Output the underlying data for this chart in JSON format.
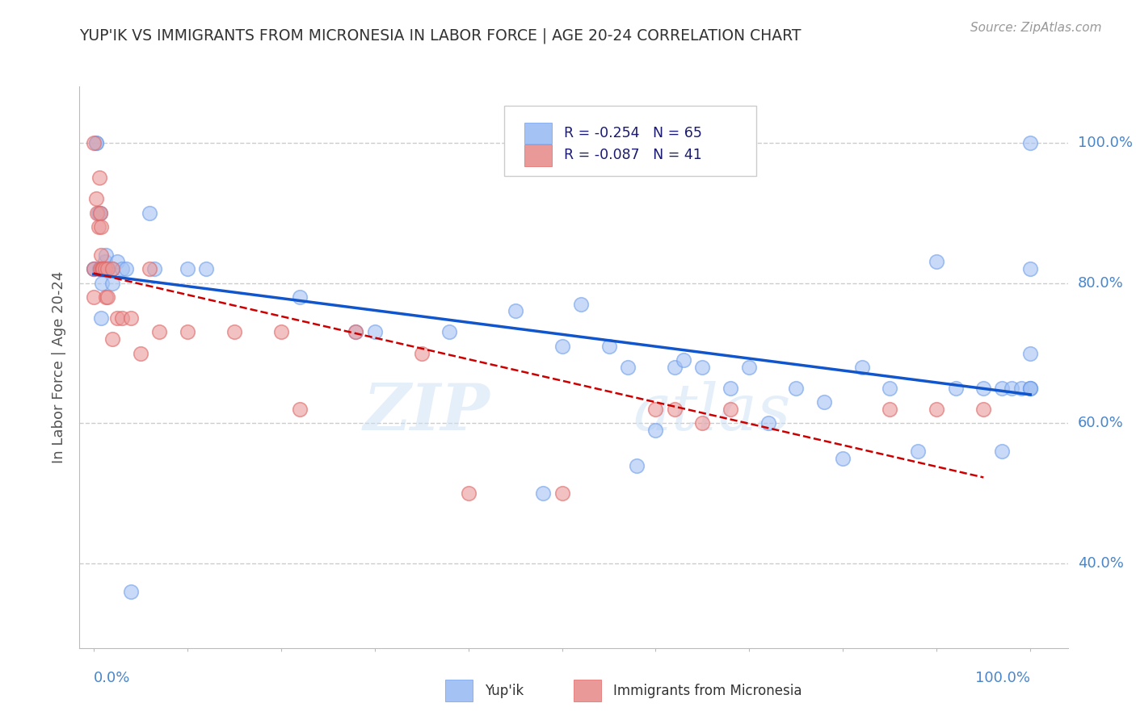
{
  "title": "YUP'IK VS IMMIGRANTS FROM MICRONESIA IN LABOR FORCE | AGE 20-24 CORRELATION CHART",
  "source": "Source: ZipAtlas.com",
  "ylabel": "In Labor Force | Age 20-24",
  "legend_blue_r": "R = -0.254",
  "legend_blue_n": "N = 65",
  "legend_pink_r": "R = -0.087",
  "legend_pink_n": "N = 41",
  "legend_label_blue": "Yup'ik",
  "legend_label_pink": "Immigrants from Micronesia",
  "blue_color": "#a4c2f4",
  "pink_color": "#ea9999",
  "blue_edge_color": "#6d9eeb",
  "pink_edge_color": "#e06666",
  "blue_line_color": "#1155cc",
  "pink_line_color": "#cc0000",
  "watermark_zip": "ZIP",
  "watermark_atlas": "atlas",
  "blue_x": [
    0.0,
    0.0,
    0.003,
    0.003,
    0.005,
    0.006,
    0.007,
    0.007,
    0.008,
    0.008,
    0.009,
    0.01,
    0.01,
    0.01,
    0.012,
    0.013,
    0.013,
    0.015,
    0.02,
    0.02,
    0.025,
    0.03,
    0.035,
    0.04,
    0.06,
    0.065,
    0.1,
    0.12,
    0.22,
    0.28,
    0.3,
    0.38,
    0.45,
    0.48,
    0.5,
    0.52,
    0.55,
    0.57,
    0.58,
    0.6,
    0.62,
    0.63,
    0.65,
    0.68,
    0.7,
    0.72,
    0.75,
    0.78,
    0.8,
    0.82,
    0.85,
    0.88,
    0.9,
    0.92,
    0.95,
    0.97,
    0.97,
    0.98,
    0.99,
    1.0,
    1.0,
    1.0,
    1.0,
    1.0,
    1.0
  ],
  "blue_y": [
    0.82,
    0.82,
    1.0,
    1.0,
    0.9,
    0.82,
    0.9,
    0.82,
    0.82,
    0.75,
    0.8,
    0.82,
    0.82,
    0.82,
    0.83,
    0.84,
    0.82,
    0.82,
    0.82,
    0.8,
    0.83,
    0.82,
    0.82,
    0.36,
    0.9,
    0.82,
    0.82,
    0.82,
    0.78,
    0.73,
    0.73,
    0.73,
    0.76,
    0.5,
    0.71,
    0.77,
    0.71,
    0.68,
    0.54,
    0.59,
    0.68,
    0.69,
    0.68,
    0.65,
    0.68,
    0.6,
    0.65,
    0.63,
    0.55,
    0.68,
    0.65,
    0.56,
    0.83,
    0.65,
    0.65,
    0.56,
    0.65,
    0.65,
    0.65,
    0.7,
    0.65,
    0.65,
    0.65,
    0.82,
    1.0
  ],
  "pink_x": [
    0.0,
    0.0,
    0.0,
    0.003,
    0.004,
    0.005,
    0.006,
    0.007,
    0.007,
    0.008,
    0.008,
    0.009,
    0.01,
    0.01,
    0.012,
    0.013,
    0.015,
    0.015,
    0.02,
    0.02,
    0.025,
    0.03,
    0.04,
    0.05,
    0.06,
    0.07,
    0.1,
    0.15,
    0.2,
    0.22,
    0.28,
    0.35,
    0.4,
    0.5,
    0.6,
    0.62,
    0.65,
    0.68,
    0.85,
    0.9,
    0.95
  ],
  "pink_y": [
    0.82,
    0.78,
    1.0,
    0.92,
    0.9,
    0.88,
    0.95,
    0.9,
    0.82,
    0.88,
    0.84,
    0.82,
    0.82,
    0.82,
    0.82,
    0.78,
    0.82,
    0.78,
    0.82,
    0.72,
    0.75,
    0.75,
    0.75,
    0.7,
    0.82,
    0.73,
    0.73,
    0.73,
    0.73,
    0.62,
    0.73,
    0.7,
    0.5,
    0.5,
    0.62,
    0.62,
    0.6,
    0.62,
    0.62,
    0.62,
    0.62
  ],
  "ytick_values": [
    0.4,
    0.6,
    0.8,
    1.0
  ],
  "ytick_labels": [
    "40.0%",
    "60.0%",
    "80.0%",
    "100.0%"
  ],
  "xlim": [
    -0.015,
    1.04
  ],
  "ylim": [
    0.28,
    1.08
  ],
  "grid_color": "#cccccc",
  "background_color": "#ffffff",
  "title_color": "#333333",
  "source_color": "#999999",
  "right_tick_color": "#4a86c8",
  "axis_label_color": "#555555"
}
